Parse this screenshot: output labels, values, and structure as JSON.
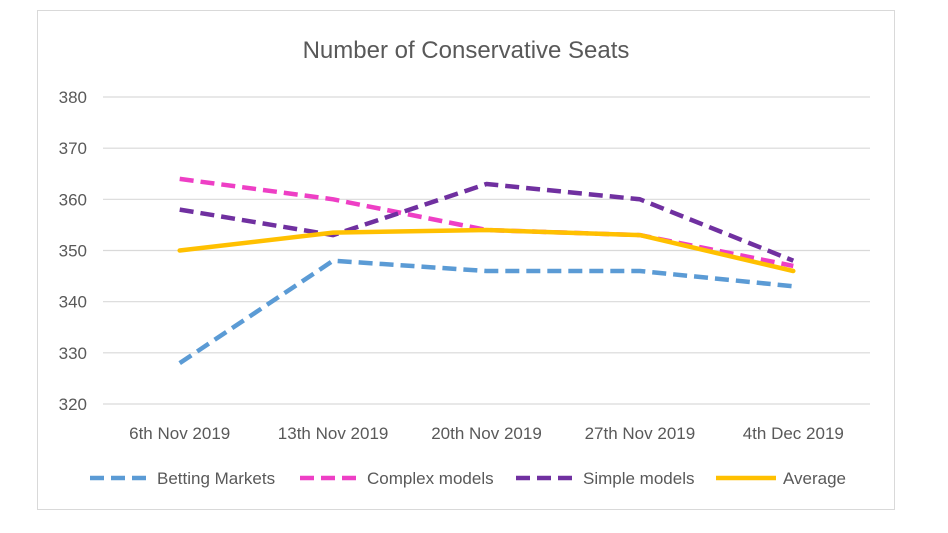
{
  "chart_data": {
    "type": "line",
    "title": "Number of Conservative Seats",
    "categories": [
      "6th Nov 2019",
      "13th Nov 2019",
      "20th Nov 2019",
      "27th Nov 2019",
      "4th Dec 2019"
    ],
    "ylim": [
      320,
      380
    ],
    "yticks": [
      320,
      330,
      340,
      350,
      360,
      370,
      380
    ],
    "grid": true,
    "legend_position": "bottom",
    "series": [
      {
        "name": "Betting Markets",
        "values": [
          328,
          348,
          346,
          346,
          343
        ],
        "color": "#5b9bd5",
        "style": "dashed"
      },
      {
        "name": "Complex models",
        "values": [
          364,
          360,
          354,
          353,
          347
        ],
        "color": "#ee3fc5",
        "style": "dashed"
      },
      {
        "name": "Simple models",
        "values": [
          358,
          353,
          363,
          360,
          348
        ],
        "color": "#7030a0",
        "style": "dashed"
      },
      {
        "name": "Average",
        "values": [
          350,
          353.5,
          354,
          353,
          346
        ],
        "color": "#ffc000",
        "style": "solid"
      }
    ]
  }
}
